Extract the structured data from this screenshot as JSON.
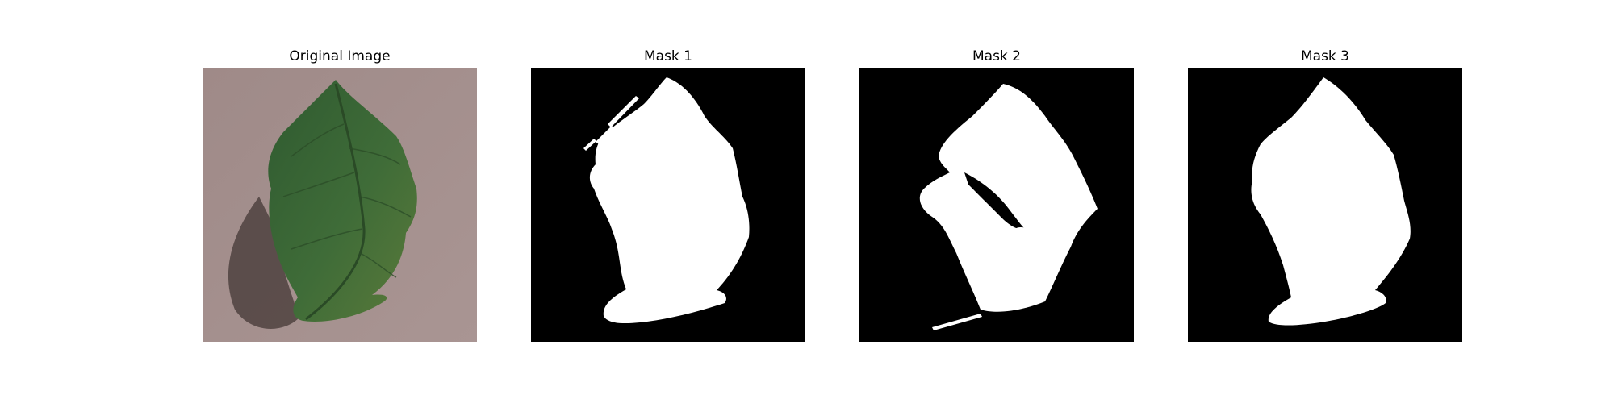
{
  "panels": [
    {
      "title": "Original Image",
      "kind": "photo"
    },
    {
      "title": "Mask 1",
      "kind": "mask"
    },
    {
      "title": "Mask 2",
      "kind": "mask"
    },
    {
      "title": "Mask 3",
      "kind": "mask"
    }
  ],
  "colors": {
    "background": "#ffffff",
    "mask_background": "#000000",
    "mask_foreground": "#ffffff",
    "surface": "#a38e8c",
    "leaf": "#3e6b3a",
    "shadow": "#4f4240"
  }
}
